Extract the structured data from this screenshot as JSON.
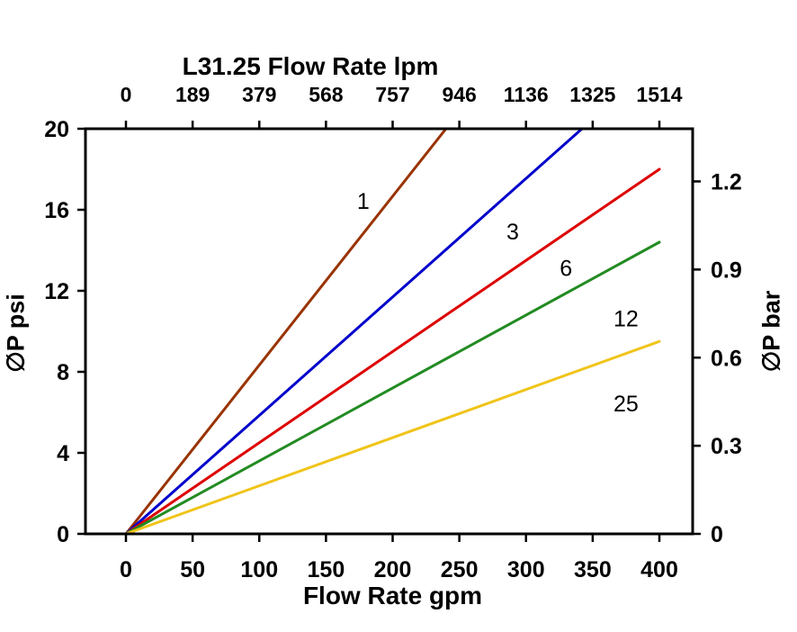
{
  "chart_data": {
    "type": "line",
    "title": "L31.25 Flow Rate lpm",
    "xlabel": "Flow Rate gpm",
    "ylabel_left": "∅P psi",
    "ylabel_right": "∅P bar",
    "xlim": [
      0,
      400
    ],
    "ylim": [
      0,
      20
    ],
    "grid": false,
    "x_ticks_gpm": [
      0,
      50,
      100,
      150,
      200,
      250,
      300,
      350,
      400
    ],
    "top_ticks_lpm": [
      "0",
      "189",
      "379",
      "568",
      "757",
      "946",
      "1136",
      "1325",
      "1514"
    ],
    "y_ticks_psi": [
      0,
      4,
      8,
      12,
      16,
      20
    ],
    "right_ticks_bar": [
      {
        "label": "0",
        "psi": 0
      },
      {
        "label": "0.3",
        "psi": 4.35
      },
      {
        "label": "0.6",
        "psi": 8.7
      },
      {
        "label": "0.9",
        "psi": 13.05
      },
      {
        "label": "1.2",
        "psi": 17.4
      }
    ],
    "series": [
      {
        "name": "1",
        "color": "#993300",
        "points": [
          [
            0,
            0
          ],
          [
            240,
            20
          ]
        ],
        "label_pos": [
          178,
          16.4
        ]
      },
      {
        "name": "3",
        "color": "#0000CC",
        "points": [
          [
            0,
            0
          ],
          [
            342,
            20
          ]
        ],
        "label_pos": [
          290,
          14.9
        ]
      },
      {
        "name": "6",
        "color": "#DD0000",
        "points": [
          [
            0,
            0
          ],
          [
            400,
            18
          ]
        ],
        "label_pos": [
          330,
          13.1
        ]
      },
      {
        "name": "12",
        "color": "#228B22",
        "points": [
          [
            0,
            0
          ],
          [
            400,
            14.4
          ]
        ],
        "label_pos": [
          375,
          10.6
        ]
      },
      {
        "name": "25",
        "color": "#F0C419",
        "points": [
          [
            0,
            0
          ],
          [
            400,
            9.5
          ]
        ],
        "label_pos": [
          375,
          6.4
        ]
      }
    ]
  }
}
